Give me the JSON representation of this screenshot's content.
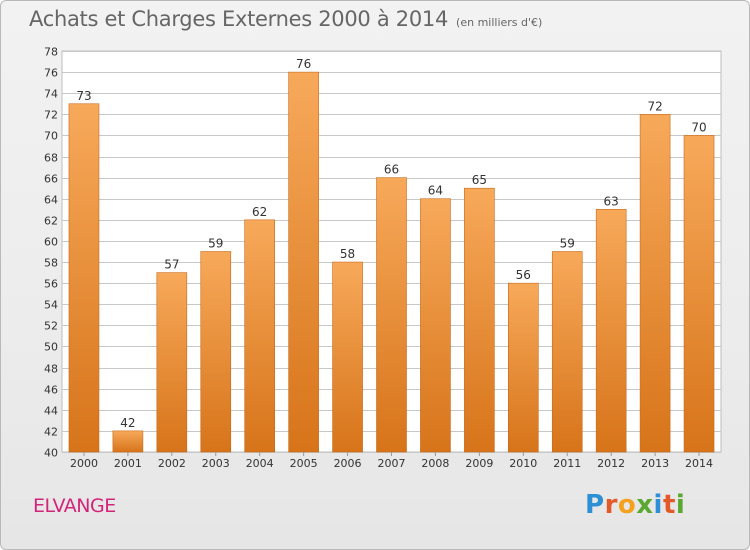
{
  "header": {
    "title": "Achats et Charges Externes 2000 à 2014",
    "subtitle": "(en milliers d'€)"
  },
  "footer": {
    "place": "ELVANGE",
    "logo": "Proxiti"
  },
  "colors": {
    "bar_top": "#f7a95a",
    "bar_bottom": "#d7741a",
    "grid": "#c8c8c8",
    "axis_text": "#333333",
    "place_text": "#d2257a"
  },
  "chart_data": {
    "type": "bar",
    "title": "Achats et Charges Externes 2000 à 2014",
    "subtitle": "(en milliers d'€)",
    "xlabel": "",
    "ylabel": "",
    "categories": [
      "2000",
      "2001",
      "2002",
      "2003",
      "2004",
      "2005",
      "2006",
      "2007",
      "2008",
      "2009",
      "2010",
      "2011",
      "2012",
      "2013",
      "2014"
    ],
    "values": [
      73,
      42,
      57,
      59,
      62,
      76,
      58,
      66,
      64,
      65,
      56,
      59,
      63,
      72,
      70
    ],
    "ylim": [
      40,
      78
    ],
    "yticks": [
      40,
      42,
      44,
      46,
      48,
      50,
      52,
      54,
      56,
      58,
      60,
      62,
      64,
      66,
      68,
      70,
      72,
      74,
      76,
      78
    ],
    "grid": true,
    "data_labels": true
  }
}
